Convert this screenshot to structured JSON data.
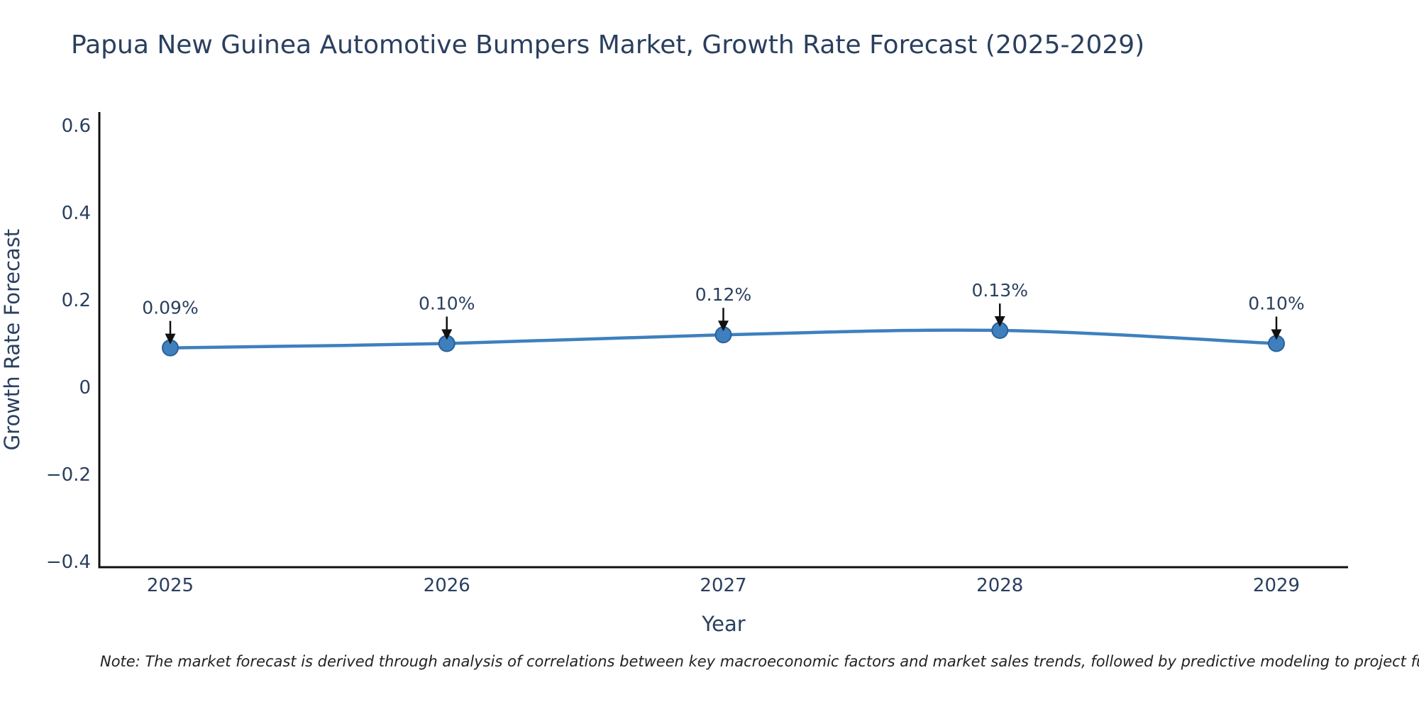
{
  "title": "Papua New Guinea Automotive Bumpers Market, Growth Rate Forecast (2025-2029)",
  "note": "Note: The market forecast is derived through analysis of correlations between key macroeconomic factors and market sales trends, followed by predictive modeling to project future sa",
  "chart_data": {
    "type": "line",
    "title": "Papua New Guinea Automotive Bumpers Market, Growth Rate Forecast (2025-2029)",
    "xlabel": "Year",
    "ylabel": "Growth Rate Forecast",
    "x": [
      2025,
      2026,
      2027,
      2028,
      2029
    ],
    "values": [
      0.09,
      0.1,
      0.12,
      0.13,
      0.1
    ],
    "point_labels": [
      "0.09%",
      "0.10%",
      "0.12%",
      "0.13%",
      "0.10%"
    ],
    "x_tick_labels": [
      "2025",
      "2026",
      "2027",
      "2028",
      "2029"
    ],
    "y_ticks": [
      0.6,
      0.4,
      0.2,
      0,
      -0.2,
      -0.4
    ],
    "y_tick_labels": [
      "0.6",
      "0.4",
      "0.2",
      "0",
      "−0.2",
      "−0.4"
    ],
    "ylim": [
      -0.413,
      0.631
    ],
    "xlim": [
      2024.74,
      2029.26
    ],
    "grid": false,
    "legend": "none",
    "line_shape": "spline",
    "annotation_arrows": "down",
    "colors": {
      "line": "#3e80be",
      "marker_fill": "#3e80be",
      "marker_edge": "#2a6099",
      "text": "#2a3f5f",
      "axis_line": "#111111",
      "arrow": "#111111",
      "note_text": "#222222",
      "background": "#ffffff"
    }
  }
}
